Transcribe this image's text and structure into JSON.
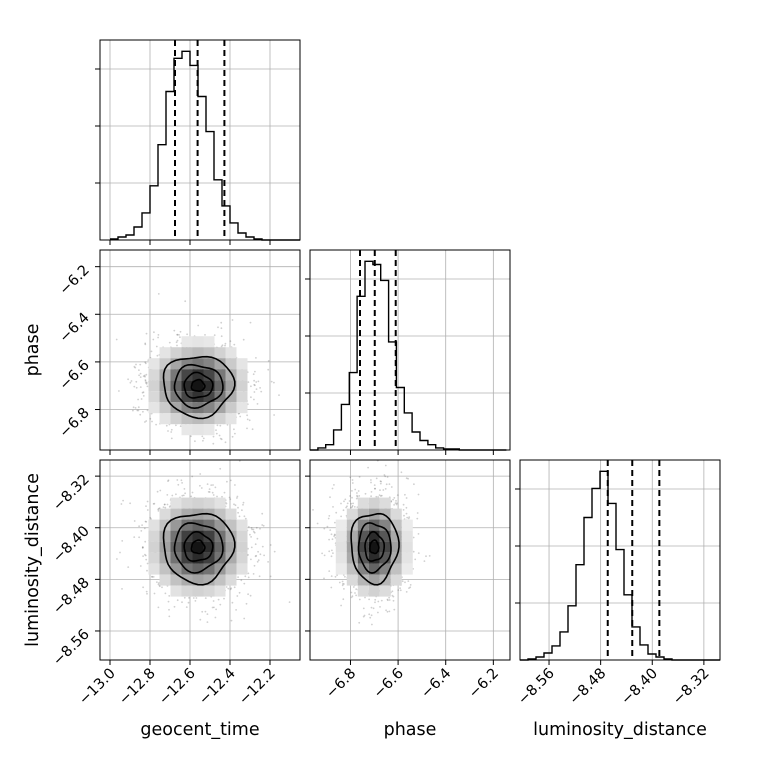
{
  "chart_data": [
    {
      "type": "histogram",
      "panel": "geocent_time-marginal",
      "xlim": [
        -13.05,
        -12.05
      ],
      "xticks": [
        -13.0,
        -12.8,
        -12.6,
        -12.4,
        -12.2
      ],
      "yticks_count": 3,
      "bins": {
        "start": -13.0,
        "width": 0.04,
        "counts": [
          1,
          3,
          5,
          13,
          27,
          54,
          95,
          148,
          181,
          188,
          174,
          143,
          108,
          60,
          34,
          17,
          7,
          3,
          1,
          0,
          0,
          0,
          0,
          0,
          0
        ]
      },
      "quantiles": [
        -12.675,
        -12.562,
        -12.428
      ],
      "grid": true
    },
    {
      "type": "histogram",
      "panel": "phase-marginal",
      "xlim": [
        -6.97,
        -6.13
      ],
      "xticks": [
        -6.8,
        -6.6,
        -6.4,
        -6.2
      ],
      "yticks_count": 3,
      "bins": {
        "start": -6.97,
        "width": 0.033,
        "counts": [
          0,
          2,
          5,
          19,
          43,
          73,
          145,
          178,
          175,
          160,
          102,
          59,
          35,
          17,
          9,
          5,
          2,
          1,
          1,
          0,
          0,
          0,
          0,
          0,
          0
        ]
      },
      "quantiles": [
        -6.76,
        -6.698,
        -6.61
      ],
      "grid": true
    },
    {
      "type": "histogram",
      "panel": "luminosity_distance-marginal",
      "xlim": [
        -8.605,
        -8.295
      ],
      "xticks": [
        -8.56,
        -8.48,
        -8.4,
        -8.32
      ],
      "xtick_labels": [
        "−8.56",
        "−8.48",
        "−8.40",
        "−8.32"
      ],
      "yticks_count": 3,
      "bins": {
        "start": -8.605,
        "width": 0.0124,
        "counts": [
          0,
          1,
          3,
          7,
          14,
          28,
          54,
          95,
          142,
          171,
          188,
          156,
          110,
          65,
          33,
          15,
          6,
          3,
          1,
          0,
          0,
          0,
          0,
          0,
          0
        ]
      },
      "quantiles": [
        -8.469,
        -8.431,
        -8.389
      ],
      "grid": true
    },
    {
      "type": "scatter-density",
      "panel": "phase-vs-geocent_time",
      "x": "geocent_time",
      "y": "phase",
      "xlim": [
        -13.05,
        -12.05
      ],
      "ylim": [
        -6.97,
        -6.13
      ],
      "center": [
        -12.56,
        -6.7
      ],
      "spread": [
        0.11,
        0.08
      ],
      "yticks": [
        -6.2,
        -6.4,
        -6.6,
        -6.8
      ],
      "contour_levels": [
        0.3,
        0.65,
        1.1,
        1.6
      ],
      "grid": true
    },
    {
      "type": "scatter-density",
      "panel": "luminosity_distance-vs-geocent_time",
      "x": "geocent_time",
      "y": "luminosity_distance",
      "xlim": [
        -13.05,
        -12.05
      ],
      "ylim": [
        -8.605,
        -8.295
      ],
      "center": [
        -12.56,
        -8.43
      ],
      "spread": [
        0.11,
        0.034
      ],
      "yticks": [
        -8.32,
        -8.4,
        -8.48,
        -8.56
      ],
      "contour_levels": [
        0.3,
        0.65,
        1.1,
        1.6
      ],
      "grid": true
    },
    {
      "type": "scatter-density",
      "panel": "luminosity_distance-vs-phase",
      "x": "phase",
      "y": "luminosity_distance",
      "xlim": [
        -6.97,
        -6.13
      ],
      "ylim": [
        -8.605,
        -8.295
      ],
      "center": [
        -6.7,
        -8.43
      ],
      "spread": [
        0.062,
        0.034
      ],
      "contour_levels": [
        0.3,
        0.65,
        1.1,
        1.6
      ],
      "grid": true
    }
  ],
  "labels": {
    "x_geocent_time": "geocent_time",
    "x_phase": "phase",
    "x_luminosity_distance": "luminosity_distance",
    "y_phase": "phase",
    "y_luminosity_distance": "luminosity_distance"
  },
  "tick_labels": {
    "geocent_time": [
      "−13.0",
      "−12.8",
      "−12.6",
      "−12.4",
      "−12.2"
    ],
    "phase": [
      "−6.8",
      "−6.6",
      "−6.4",
      "−6.2"
    ],
    "phase_y": [
      "−6.2",
      "−6.4",
      "−6.6",
      "−6.8"
    ],
    "luminosity_distance_x": [
      "−8.56",
      "−8.48",
      "−8.40",
      "−8.32"
    ],
    "luminosity_distance_y": [
      "−8.32",
      "−8.40",
      "−8.48",
      "−8.56"
    ]
  },
  "colors": {
    "ink": "#000000",
    "grid": "#b0b0b0",
    "scatter": "#555555",
    "frame": "#000000"
  }
}
